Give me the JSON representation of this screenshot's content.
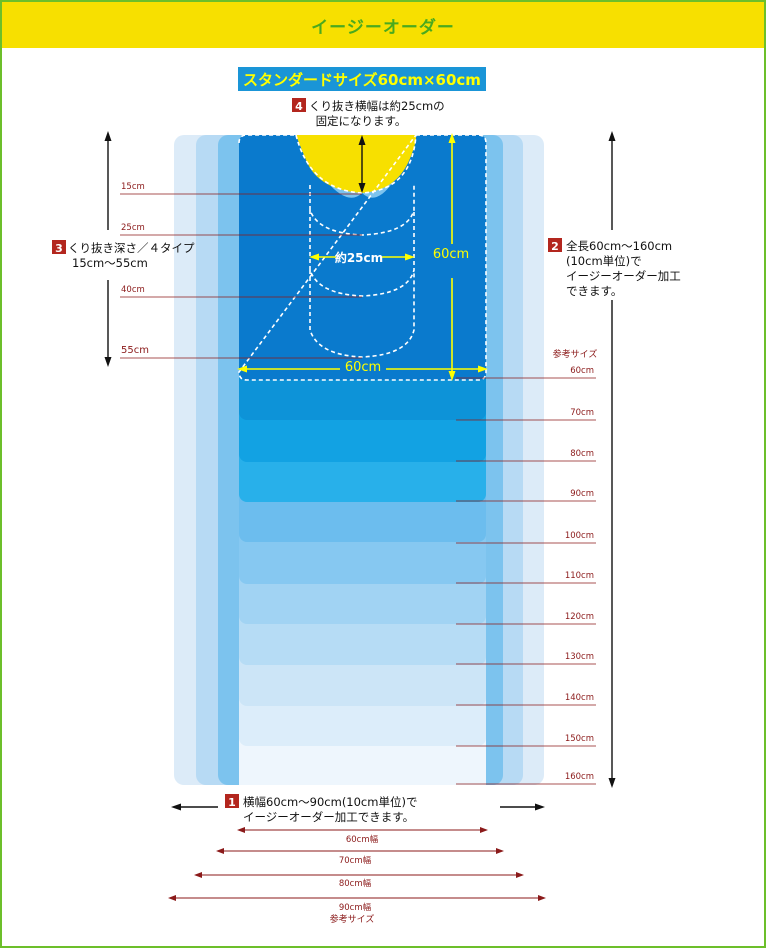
{
  "header": {
    "title": "イージーオーダー"
  },
  "standard_size_label": "スタンダードサイズ60cm×60cm",
  "notes": {
    "n1": {
      "num": "1",
      "line1": "横幅60cm〜90cm(10cm単位)で",
      "line2": "イージーオーダー加工できます。"
    },
    "n2": {
      "num": "2",
      "line1": "全長60cm〜160cm",
      "line2": "(10cm単位)で",
      "line3": "イージーオーダー加工",
      "line4": "できます。"
    },
    "n3": {
      "num": "3",
      "line1": "くり抜き深さ／４タイプ",
      "line2": "15cm〜55cm"
    },
    "n4": {
      "num": "4",
      "line1": "くり抜き横幅は約25cmの",
      "line2": "固定になります。"
    }
  },
  "depth_labels": [
    "15cm",
    "25cm",
    "40cm",
    "55cm"
  ],
  "cutout_width_label": "約25cm",
  "mat_height_label": "60cm",
  "mat_width_label": "60cm",
  "reference_size_label": "参考サイズ",
  "length_labels": [
    "60cm",
    "70cm",
    "80cm",
    "90cm",
    "100cm",
    "110cm",
    "120cm",
    "130cm",
    "140cm",
    "150cm",
    "160cm"
  ],
  "width_labels": [
    "60cm幅",
    "70cm幅",
    "80cm幅",
    "90cm幅"
  ],
  "colors": {
    "header_bg": "#f7e000",
    "header_text": "#4aaa1e",
    "frame_border": "#6cbf2a",
    "standard_mat": "#0a7acd",
    "cutout": "#f7e000",
    "accent_yellow": "#ffff00",
    "dark_red": "#8b1a1a",
    "badge_red": "#b3261e"
  }
}
